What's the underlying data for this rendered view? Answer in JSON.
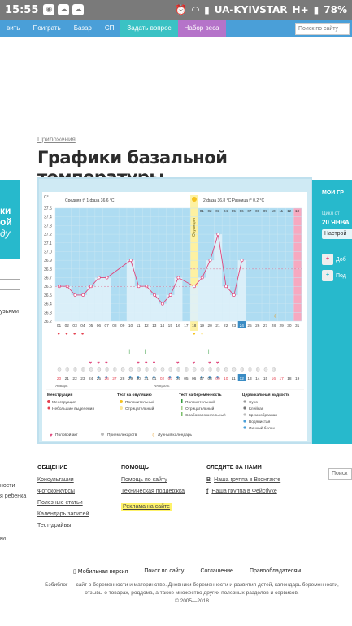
{
  "status": {
    "time": "15:55",
    "carrier": "UA-KYIVSTAR",
    "net": "H+",
    "battery": "78%"
  },
  "nav": {
    "items": [
      "вить",
      "Поиграть",
      "Базар",
      "СП"
    ],
    "ask": "Задать вопрос",
    "weight": "Набор веса",
    "search_placeholder": "Поиск по сайту"
  },
  "breadcrumb": "Приложения",
  "title": "Графики базальной температуры",
  "left": {
    "hero": [
      "ки",
      "ой",
      "ду"
    ],
    "friends": "узьями"
  },
  "right": {
    "label": "МОИ ГР",
    "cycle": "Цикл от",
    "date": "20 ЯНВА",
    "settings": "Настрой",
    "add1": "Доб",
    "add2": "Под"
  },
  "chart_data": {
    "type": "line",
    "title": "",
    "ylabel": "C°",
    "ylim": [
      36.2,
      37.5
    ],
    "yticks": [
      36.2,
      36.3,
      36.4,
      36.5,
      36.6,
      36.7,
      36.8,
      36.9,
      37.0,
      37.1,
      37.2,
      37.3,
      37.4,
      37.5
    ],
    "top_info": {
      "phase1": "Средняя t° 1 фаза",
      "phase1_val": "36.6 °C",
      "phase2": "2 фаза",
      "phase2_val": "36.8 °C",
      "diff": "Разница t°",
      "diff_val": "0.2 °C"
    },
    "cycle_days": [
      "01",
      "02",
      "03",
      "04",
      "05",
      "06",
      "07",
      "08",
      "09",
      "10",
      "11",
      "12",
      "13",
      "14",
      "15",
      "16",
      "17",
      "18",
      "19",
      "20",
      "21",
      "22",
      "23",
      "24",
      "25",
      "26",
      "27",
      "28",
      "29",
      "30",
      "31"
    ],
    "right_days": [
      "01",
      "02",
      "03",
      "04",
      "05",
      "06",
      "07",
      "08",
      "09",
      "10",
      "11",
      "12",
      "13"
    ],
    "values": [
      36.6,
      36.6,
      36.5,
      36.5,
      36.6,
      36.7,
      36.7,
      null,
      null,
      36.9,
      36.6,
      36.6,
      36.5,
      36.4,
      36.5,
      36.7,
      null,
      36.6,
      36.7,
      36.9,
      37.2,
      36.6,
      36.5,
      36.9,
      null,
      null,
      null,
      null,
      null,
      null,
      null
    ],
    "ovulation_label": "Овуляция",
    "date_row": [
      "20",
      "21",
      "22",
      "23",
      "24",
      "25",
      "26",
      "27",
      "28",
      "29",
      "30",
      "31",
      "01",
      "02",
      "03",
      "04",
      "05",
      "06",
      "07",
      "08",
      "09",
      "10",
      "11",
      "12",
      "13",
      "14",
      "15",
      "16",
      "17",
      "18",
      "19"
    ],
    "month1": "Январь",
    "month2": "Февраль"
  },
  "legend": {
    "menstr_title": "Менструация",
    "menstr": "Менструация",
    "menstr2": "Небольшие выделения",
    "ovtest_title": "Тест на овуляцию",
    "pos": "Положительный",
    "neg": "Отрицательный",
    "preg_title": "Тест на беременность",
    "ppos": "Положительный",
    "pneg": "Отрицательный",
    "pweak": "Слабоположительный",
    "cerv_title": "Цервикальная жидкость",
    "c1": "Сухо",
    "c2": "Клейкая",
    "c3": "Кремообразная",
    "c4": "Водянистая",
    "c5": "Яичный белок",
    "b1": "Половой акт",
    "b2": "Прием лекарств",
    "b3": "Лунный календарь"
  },
  "footer": {
    "general": {
      "title": "ОБЩЕНИЕ",
      "links": [
        "Консультации",
        "Фотоконкурсы",
        "Полезные статьи",
        "Календарь записей",
        "Тест-драйвы"
      ]
    },
    "help": {
      "title": "ПОМОЩЬ",
      "links": [
        "Помощь по сайту",
        "Техническая поддержка",
        "Реклама на сайте"
      ]
    },
    "follow": {
      "title": "СЛЕДИТЕ ЗА НАМИ",
      "links": [
        "Наша группа в Вконтакте",
        "Наша группа в Фейсбуке"
      ]
    },
    "left_parts": [
      "ности",
      "я ребенка",
      "ки"
    ],
    "search_placeholder": "Поиск",
    "bottom": [
      "Мобильная версия",
      "Поиск по сайту",
      "Соглашение",
      "Правообладателям"
    ],
    "about": "Бэбиблог — сайт о беременности и материнстве. Дневники беременности и развития детей, календарь беременности, отзывы о товарах, роддома, а также множество других полезных разделов и сервисов.",
    "copy": "© 2005—2018"
  }
}
